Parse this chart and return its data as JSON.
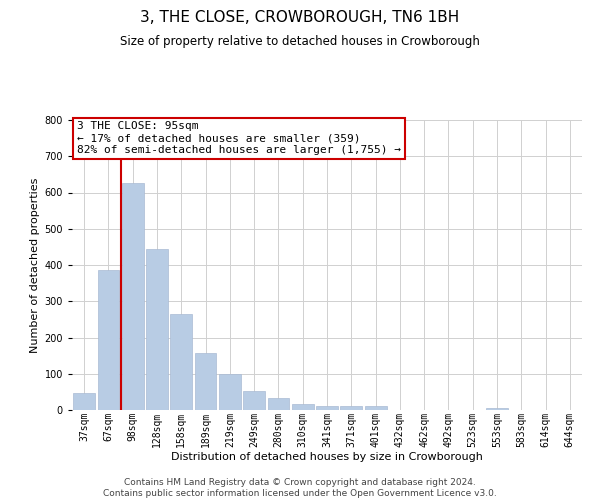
{
  "title": "3, THE CLOSE, CROWBOROUGH, TN6 1BH",
  "subtitle": "Size of property relative to detached houses in Crowborough",
  "xlabel": "Distribution of detached houses by size in Crowborough",
  "ylabel": "Number of detached properties",
  "bin_labels": [
    "37sqm",
    "67sqm",
    "98sqm",
    "128sqm",
    "158sqm",
    "189sqm",
    "219sqm",
    "249sqm",
    "280sqm",
    "310sqm",
    "341sqm",
    "371sqm",
    "401sqm",
    "432sqm",
    "462sqm",
    "492sqm",
    "523sqm",
    "553sqm",
    "583sqm",
    "614sqm",
    "644sqm"
  ],
  "bar_values": [
    48,
    385,
    625,
    443,
    265,
    157,
    98,
    52,
    32,
    16,
    10,
    12,
    10,
    0,
    0,
    0,
    0,
    5,
    0,
    0,
    0
  ],
  "bar_color": "#b8cce4",
  "bar_edgecolor": "#aabbd4",
  "vline_color": "#cc0000",
  "annotation_title": "3 THE CLOSE: 95sqm",
  "annotation_line2": "← 17% of detached houses are smaller (359)",
  "annotation_line3": "82% of semi-detached houses are larger (1,755) →",
  "annotation_box_color": "#ffffff",
  "annotation_box_edgecolor": "#cc0000",
  "ylim": [
    0,
    800
  ],
  "yticks": [
    0,
    100,
    200,
    300,
    400,
    500,
    600,
    700,
    800
  ],
  "footer_line1": "Contains HM Land Registry data © Crown copyright and database right 2024.",
  "footer_line2": "Contains public sector information licensed under the Open Government Licence v3.0.",
  "background_color": "#ffffff",
  "grid_color": "#d0d0d0",
  "title_fontsize": 11,
  "subtitle_fontsize": 8.5,
  "axis_label_fontsize": 8,
  "tick_fontsize": 7,
  "annotation_fontsize": 8,
  "footer_fontsize": 6.5
}
